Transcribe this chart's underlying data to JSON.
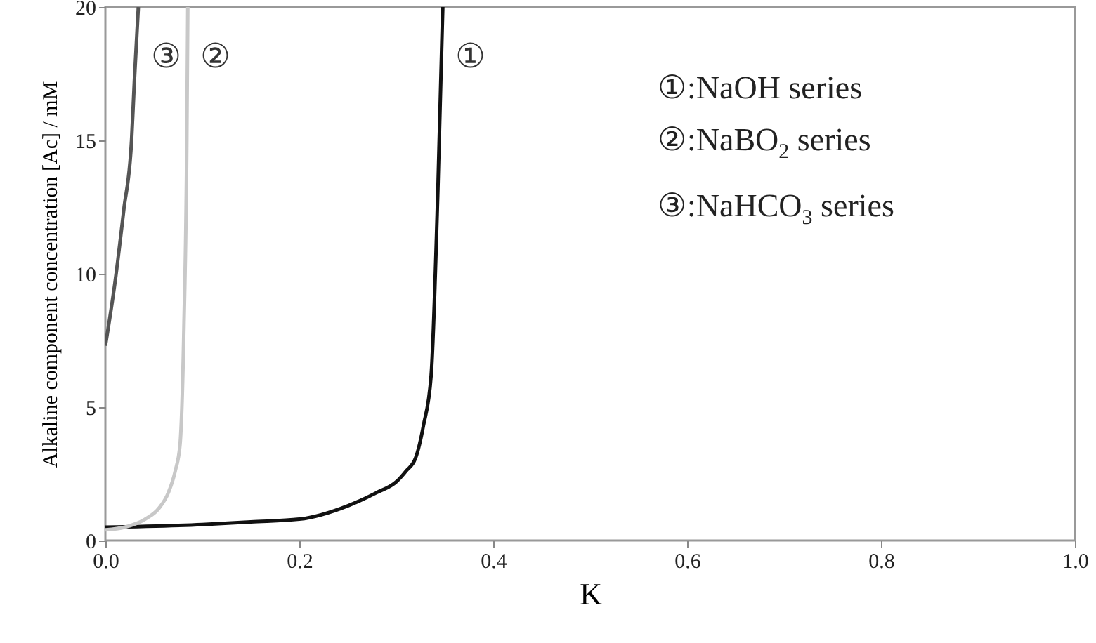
{
  "chart_data": {
    "type": "line",
    "xlabel": "K",
    "ylabel": "Alkaline component concentration [Ac] / mM",
    "xlim": [
      0,
      1
    ],
    "ylim": [
      0,
      20
    ],
    "xticks": [
      {
        "value": 0,
        "label": "0.0"
      },
      {
        "value": 0.2,
        "label": "0.2"
      },
      {
        "value": 0.4,
        "label": "0.4"
      },
      {
        "value": 0.6,
        "label": "0.6"
      },
      {
        "value": 0.8,
        "label": "0.8"
      },
      {
        "value": 1,
        "label": "1.0"
      }
    ],
    "yticks": [
      0,
      5,
      10,
      15,
      20
    ],
    "grid": false,
    "marker": "none",
    "line_style": "solid",
    "series": [
      {
        "name": "①",
        "color": "#111111",
        "x": [
          0,
          0.1,
          0.15,
          0.2,
          0.25,
          0.28,
          0.3,
          0.31,
          0.32,
          0.328,
          0.336,
          0.343,
          0.348
        ],
        "values": [
          0.5,
          0.6,
          0.7,
          0.8,
          1.3,
          1.8,
          2.2,
          2.6,
          3.1,
          4.3,
          6.2,
          13.2,
          20
        ]
      },
      {
        "name": "②",
        "color": "#c8c8c8",
        "x": [
          0,
          0.02,
          0.041,
          0.055,
          0.065,
          0.072,
          0.077,
          0.081,
          0.084,
          0.085
        ],
        "values": [
          0.4,
          0.5,
          0.8,
          1.2,
          1.8,
          2.6,
          3.6,
          8,
          15,
          20
        ]
      },
      {
        "name": "③",
        "color": "#555555",
        "x": [
          0,
          0.01,
          0.019,
          0.027,
          0.03,
          0.034
        ],
        "values": [
          7.3,
          9.7,
          12.4,
          15,
          17.3,
          20
        ]
      }
    ],
    "annotations": [
      "①:NaOH series",
      "②:NaBO$_{2}$ series",
      "③:NaHCO$_{3}$ series"
    ]
  }
}
